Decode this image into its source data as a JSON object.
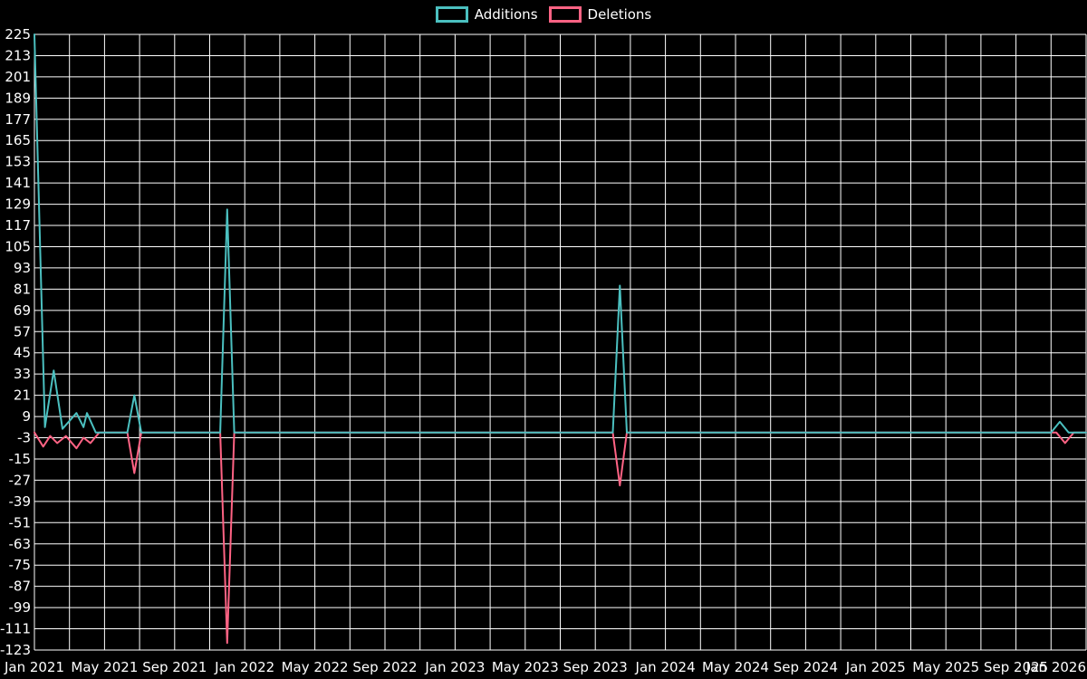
{
  "colors": {
    "background": "#000000",
    "grid": "#ffffff",
    "text": "#ffffff"
  },
  "legend": {
    "items": [
      {
        "label": "Additions",
        "color": "#4bc0c0"
      },
      {
        "label": "Deletions",
        "color": "#ff6384"
      }
    ]
  },
  "chart_data": {
    "type": "line",
    "title": "",
    "xlabel": "",
    "ylabel": "",
    "grid": "on",
    "legend_position": "top-center",
    "x_axis": {
      "unit": "months",
      "months_total": 60,
      "gridline_every_months": 2,
      "ticks": [
        {
          "month": 0,
          "label": "Jan 2021"
        },
        {
          "month": 4,
          "label": "May 2021"
        },
        {
          "month": 8,
          "label": "Sep 2021"
        },
        {
          "month": 12,
          "label": "Jan 2022"
        },
        {
          "month": 16,
          "label": "May 2022"
        },
        {
          "month": 20,
          "label": "Sep 2022"
        },
        {
          "month": 24,
          "label": "Jan 2023"
        },
        {
          "month": 28,
          "label": "May 2023"
        },
        {
          "month": 32,
          "label": "Sep 2023"
        },
        {
          "month": 36,
          "label": "Jan 2024"
        },
        {
          "month": 40,
          "label": "May 2024"
        },
        {
          "month": 44,
          "label": "Sep 2024"
        },
        {
          "month": 48,
          "label": "Jan 2025"
        },
        {
          "month": 52,
          "label": "May 2025"
        },
        {
          "month": 56,
          "label": "Sep 2025"
        },
        {
          "month": 60,
          "label": "Jan 2026"
        }
      ]
    },
    "y_axis": {
      "min": -123,
      "max": 225,
      "tick_step": 12
    },
    "series": [
      {
        "name": "Additions",
        "color": "#4bc0c0",
        "points": [
          [
            0,
            225
          ],
          [
            0.6,
            3
          ],
          [
            1.1,
            35
          ],
          [
            1.6,
            2
          ],
          [
            2.4,
            11
          ],
          [
            2.8,
            3
          ],
          [
            3.0,
            11
          ],
          [
            3.5,
            0
          ],
          [
            5.3,
            0
          ],
          [
            5.7,
            21
          ],
          [
            6.1,
            0
          ],
          [
            10.6,
            0
          ],
          [
            11.0,
            126
          ],
          [
            11.4,
            0
          ],
          [
            33.0,
            0
          ],
          [
            33.4,
            83
          ],
          [
            33.8,
            0
          ],
          [
            58.0,
            0
          ],
          [
            58.5,
            6
          ],
          [
            59.0,
            0
          ],
          [
            60,
            0
          ]
        ]
      },
      {
        "name": "Deletions",
        "color": "#ff6384",
        "points": [
          [
            0,
            0
          ],
          [
            0.5,
            -8
          ],
          [
            0.9,
            -2
          ],
          [
            1.3,
            -6
          ],
          [
            1.8,
            -2
          ],
          [
            2.4,
            -9
          ],
          [
            2.8,
            -3
          ],
          [
            3.2,
            -6
          ],
          [
            3.7,
            0
          ],
          [
            5.3,
            0
          ],
          [
            5.7,
            -23
          ],
          [
            6.1,
            0
          ],
          [
            10.6,
            0
          ],
          [
            11.0,
            -119
          ],
          [
            11.4,
            0
          ],
          [
            33.0,
            0
          ],
          [
            33.4,
            -30
          ],
          [
            33.8,
            0
          ],
          [
            58.3,
            0
          ],
          [
            58.8,
            -6
          ],
          [
            59.3,
            0
          ],
          [
            60,
            0
          ]
        ]
      }
    ]
  }
}
